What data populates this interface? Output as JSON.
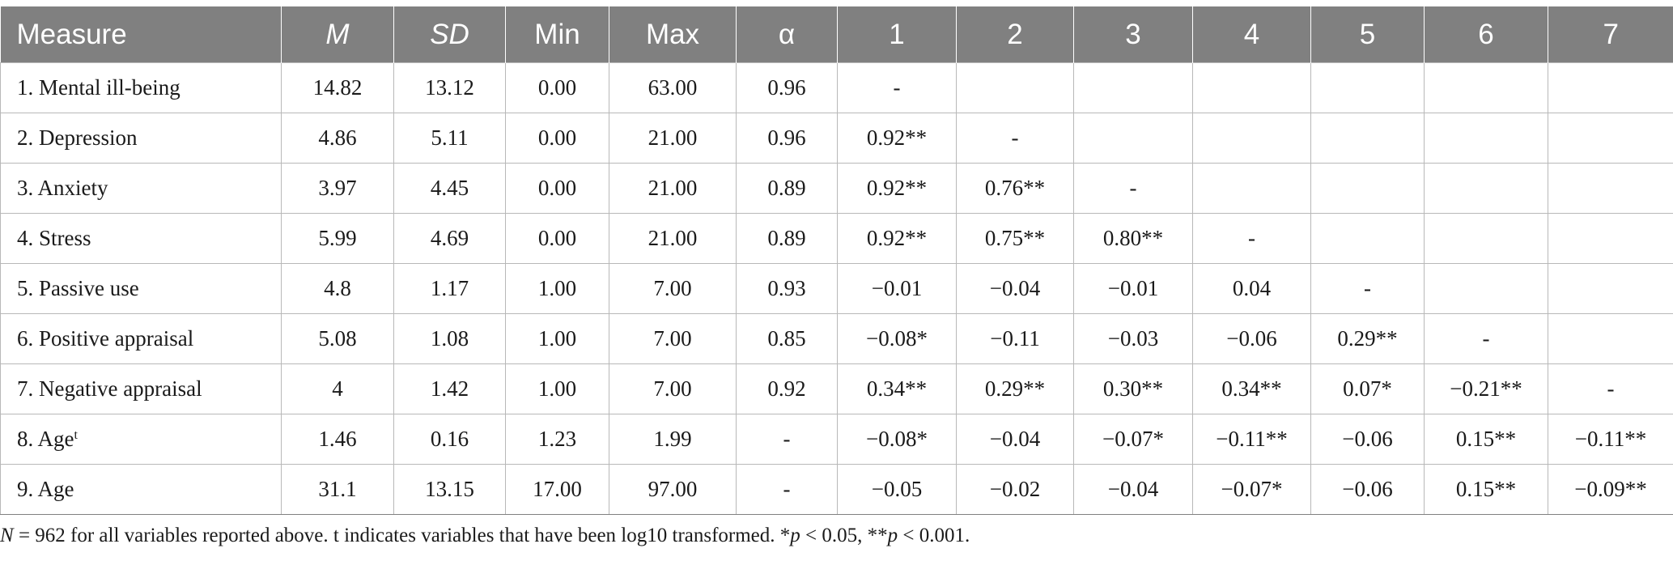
{
  "table": {
    "headers": [
      "Measure",
      "M",
      "SD",
      "Min",
      "Max",
      "α",
      "1",
      "2",
      "3",
      "4",
      "5",
      "6",
      "7"
    ],
    "rows": [
      {
        "measure": "1. Mental ill-being",
        "sup": "",
        "cells": [
          "14.82",
          "13.12",
          "0.00",
          "63.00",
          "0.96",
          "-",
          "",
          "",
          "",
          "",
          "",
          ""
        ]
      },
      {
        "measure": "2. Depression",
        "sup": "",
        "cells": [
          "4.86",
          "5.11",
          "0.00",
          "21.00",
          "0.96",
          "0.92**",
          "-",
          "",
          "",
          "",
          "",
          ""
        ]
      },
      {
        "measure": "3. Anxiety",
        "sup": "",
        "cells": [
          "3.97",
          "4.45",
          "0.00",
          "21.00",
          "0.89",
          "0.92**",
          "0.76**",
          "-",
          "",
          "",
          "",
          ""
        ]
      },
      {
        "measure": "4. Stress",
        "sup": "",
        "cells": [
          "5.99",
          "4.69",
          "0.00",
          "21.00",
          "0.89",
          "0.92**",
          "0.75**",
          "0.80**",
          "-",
          "",
          "",
          ""
        ]
      },
      {
        "measure": "5. Passive use",
        "sup": "",
        "cells": [
          "4.8",
          "1.17",
          "1.00",
          "7.00",
          "0.93",
          "−0.01",
          "−0.04",
          "−0.01",
          "0.04",
          "-",
          "",
          ""
        ]
      },
      {
        "measure": "6. Positive appraisal",
        "sup": "",
        "cells": [
          "5.08",
          "1.08",
          "1.00",
          "7.00",
          "0.85",
          "−0.08*",
          "−0.11",
          "−0.03",
          "−0.06",
          "0.29**",
          "-",
          ""
        ]
      },
      {
        "measure": "7. Negative appraisal",
        "sup": "",
        "cells": [
          "4",
          "1.42",
          "1.00",
          "7.00",
          "0.92",
          "0.34**",
          "0.29**",
          "0.30**",
          "0.34**",
          "0.07*",
          "−0.21**",
          "-"
        ]
      },
      {
        "measure": "8. Age",
        "sup": "t",
        "cells": [
          "1.46",
          "0.16",
          "1.23",
          "1.99",
          "-",
          "−0.08*",
          "−0.04",
          "−0.07*",
          "−0.11**",
          "−0.06",
          "0.15**",
          "−0.11**"
        ]
      },
      {
        "measure": "9. Age",
        "sup": "",
        "cells": [
          "31.1",
          "13.15",
          "17.00",
          "97.00",
          "-",
          "−0.05",
          "−0.02",
          "−0.04",
          "−0.07*",
          "−0.06",
          "0.15**",
          "−0.09**"
        ]
      }
    ]
  },
  "note": {
    "n_symbol": "N",
    "text1": " = 962 for all variables reported above. t indicates variables that have been log10 transformed. *",
    "p1": "p",
    "text2": " < 0.05, **",
    "p2": "p",
    "text3": " < 0.001."
  }
}
